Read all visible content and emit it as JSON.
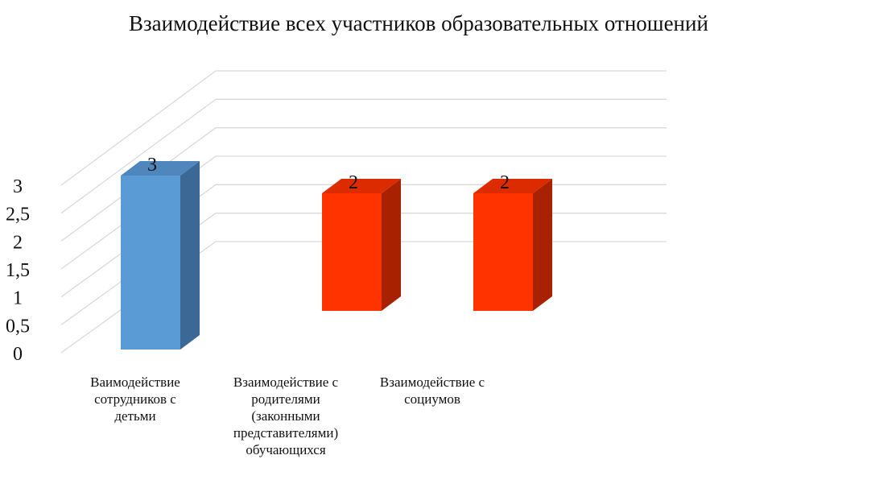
{
  "chart_data": {
    "type": "bar",
    "title": "Взаимодействие всех участников образовательных отношений",
    "xlabel": "",
    "ylabel": "",
    "categories": [
      [
        "Ваимодействие",
        "сотрудников с",
        "детьми"
      ],
      [
        "Взаимодействие с",
        "родителями",
        "(законными",
        "представителями)",
        "обучающихся"
      ],
      [
        "Взаимодействие с",
        "социумов"
      ]
    ],
    "values": [
      3,
      2,
      2
    ],
    "data_labels": [
      "3",
      "2",
      "2"
    ],
    "yticks": [
      "0",
      "0,5",
      "1",
      "1,5",
      "2",
      "2,5",
      "3"
    ],
    "ylim": [
      0,
      3
    ],
    "grid": true,
    "bar_colors": [
      "#5b9bd5",
      "#ff3300",
      "#ff3300"
    ],
    "bar_side_colors": [
      "#3b6894",
      "#a82100",
      "#a82100"
    ],
    "bar_top_colors": [
      "#4f87bd",
      "#dd2b00",
      "#dd2b00"
    ]
  }
}
